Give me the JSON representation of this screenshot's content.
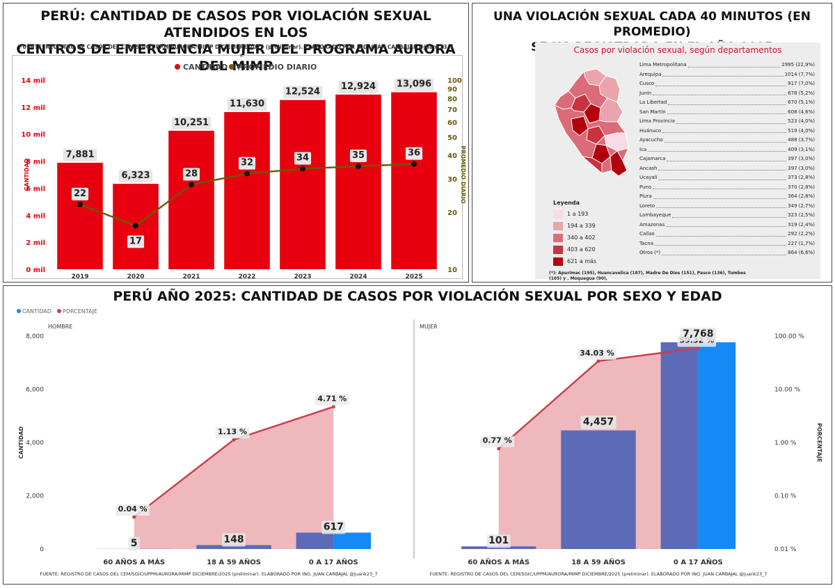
{
  "panel1": {
    "title_line1": "PERÚ: CANTIDAD DE CASOS POR VIOLACIÓN SEXUAL ATENDIDOS EN LOS",
    "title_line2": "CENTROS DE EMERGENCIA MUJER DEL PROGRAMA AURORA DEL MIMP",
    "source": "FUENTE: REGISTRO DE CASOS DEL CEM/SGIC/UPPM/AURORA/MIMP DICIEMBRE/2025 (preliminar). ELABORADO POR ING. JUAN CARBAJAL @juank23_7"
  },
  "panel2": {
    "title_line1": "UNA VIOLACIÓN SEXUAL CADA 40 MINUTOS (EN PROMEDIO)",
    "title_line2": "SE HA REGISTRADO EN EL AÑO 2025",
    "map_title": "Casos por violación sexual, según departamentos",
    "legend_title": "Leyenda",
    "legend": [
      {
        "label": "1 a 193",
        "color": "#f7dbe6"
      },
      {
        "label": "194 a 339",
        "color": "#eba4ad"
      },
      {
        "label": "340 a 402",
        "color": "#dc6b78"
      },
      {
        "label": "403 a 620",
        "color": "#c9323f"
      },
      {
        "label": "621 a más",
        "color": "#b3000c"
      }
    ],
    "departments": [
      {
        "name": "Lima Metropolitana",
        "value": "2995 (22,9%)"
      },
      {
        "name": "Arequipa",
        "value": "1014 (7,7%)"
      },
      {
        "name": "Cusco",
        "value": "917 (7,0%)"
      },
      {
        "name": "Junín",
        "value": "678 (5,2%)"
      },
      {
        "name": "La Libertad",
        "value": "670 (5,1%)"
      },
      {
        "name": "San Martín",
        "value": "608 (4,6%)"
      },
      {
        "name": "Lima Provincia",
        "value": "523 (4,0%)"
      },
      {
        "name": "Huánuco",
        "value": "519 (4,0%)"
      },
      {
        "name": "Ayacucho",
        "value": "488 (3,7%)"
      },
      {
        "name": "Ica",
        "value": "409 (3,1%)"
      },
      {
        "name": "Cajamarca",
        "value": "397 (3,0%)"
      },
      {
        "name": "Ancash",
        "value": "397 (3,0%)"
      },
      {
        "name": "Ucayali",
        "value": "373 (2,8%)"
      },
      {
        "name": "Puno",
        "value": "370 (2,8%)"
      },
      {
        "name": "Piura",
        "value": "364 (2,8%)"
      },
      {
        "name": "Loreto",
        "value": "349 (2,7%)"
      },
      {
        "name": "Lambayeque",
        "value": "323 (2,5%)"
      },
      {
        "name": "Amazonas",
        "value": "319 (2,4%)"
      },
      {
        "name": "Callao",
        "value": "292 (2,2%)"
      },
      {
        "name": "Tacna",
        "value": "227 (1,7%)"
      },
      {
        "name": "Otros (*)",
        "value": "864 (6,6%)"
      }
    ],
    "footnote_line1": "(*): Apurímac (195), Huancavelica (187), Madre De Dios (151), Pasco (136), Tumbes",
    "footnote_line2": "(105) y , Moquegua (90),"
  },
  "panel3": {
    "title": "PERÚ AÑO 2025: CANTIDAD DE CASOS POR VIOLACIÓN SEXUAL POR SEXO Y EDAD",
    "legend_qty": "CANTIDAD",
    "legend_pct": "PORCENTAJE",
    "source": "FUENTE: REGISTRO DE CASOS DEL CEM/SGIC/UPPM/AURORA/MIMP DICIEMBRE/2025 (preliminar). ELABORADO POR ING. JUAN CARBAJAL @juank23_7"
  },
  "colors": {
    "bar_red": "#e8000f",
    "line_olive": "#6b5a06",
    "bar_blue": "#1589f5",
    "bar_purple": "#5b6bb8",
    "area_pink": "#eeb4b9",
    "line_red": "#c8404c"
  },
  "chart_data": [
    {
      "type": "bar",
      "categories": [
        "2019",
        "2020",
        "2021",
        "2022",
        "2023",
        "2024",
        "2025"
      ],
      "series": [
        {
          "name": "CANTIDAD",
          "type": "bar",
          "axis": "left",
          "values": [
            7881,
            6323,
            10251,
            11630,
            12524,
            12924,
            13096
          ],
          "labels": [
            "7,881",
            "6,323",
            "10,251",
            "11,630",
            "12,524",
            "12,924",
            "13,096"
          ]
        },
        {
          "name": "PROMEDIO DIARIO",
          "type": "line",
          "axis": "right",
          "values": [
            22,
            17,
            28,
            32,
            34,
            35,
            36
          ]
        }
      ],
      "ylabel": "CANTIDAD",
      "y2label": "PROMEDIO DIARIO",
      "ylim": [
        0,
        14000
      ],
      "yticks": [
        0,
        2000,
        4000,
        6000,
        8000,
        10000,
        12000,
        14000
      ],
      "ytick_labels": [
        "0 mil",
        "2 mil",
        "4 mil",
        "6 mil",
        "8 mil",
        "10 mil",
        "12 mil",
        "14 mil"
      ],
      "y2scale": "log",
      "y2lim": [
        10,
        100
      ],
      "y2ticks": [
        10,
        20,
        30,
        40,
        50,
        60,
        70,
        80,
        90,
        100
      ],
      "y2tick_labels": [
        "10",
        "20",
        "30",
        "40",
        "50",
        "60",
        "70",
        "80",
        "90",
        "100"
      ],
      "legend": "top"
    },
    {
      "type": "bar",
      "panel": "HOMBRE",
      "categories": [
        "60 AÑOS A MÁS",
        "18 A 59 AÑOS",
        "0 A 17 AÑOS"
      ],
      "series": [
        {
          "name": "CANTIDAD",
          "type": "bar",
          "values": [
            5,
            148,
            617
          ],
          "labels": [
            "5",
            "148",
            "617"
          ]
        },
        {
          "name": "PORCENTAJE",
          "type": "area",
          "axis": "right",
          "values": [
            0.04,
            1.13,
            4.71
          ],
          "labels": [
            "0.04 %",
            "1.13 %",
            "4.71 %"
          ]
        }
      ],
      "ylabel": "CANTIDAD",
      "ylim": [
        0,
        8000
      ],
      "yticks": [
        0,
        2000,
        4000,
        6000,
        8000
      ],
      "ytick_labels": [
        "0",
        "2,000",
        "4,000",
        "6,000",
        "8,000"
      ],
      "y2scale": "log",
      "y2lim": [
        0.01,
        100
      ]
    },
    {
      "type": "bar",
      "panel": "MUJER",
      "categories": [
        "60 AÑOS A MÁS",
        "18 A 59 AÑOS",
        "0 A 17 AÑOS"
      ],
      "series": [
        {
          "name": "CANTIDAD",
          "type": "bar",
          "values": [
            101,
            4457,
            7768
          ],
          "labels": [
            "101",
            "4,457",
            "7,768"
          ]
        },
        {
          "name": "PORCENTAJE",
          "type": "area",
          "axis": "right",
          "values": [
            0.77,
            34.03,
            59.32
          ],
          "labels": [
            "0.77 %",
            "34.03 %",
            "59.32 %"
          ]
        }
      ],
      "y2label": "PORCENTAJE",
      "y2scale": "log",
      "y2lim": [
        0.01,
        100
      ],
      "y2ticks": [
        0.01,
        0.1,
        1,
        10,
        100
      ],
      "y2tick_labels": [
        "0.01 %",
        "0.10 %",
        "1.00 %",
        "10.00 %",
        "100.00 %"
      ]
    }
  ]
}
